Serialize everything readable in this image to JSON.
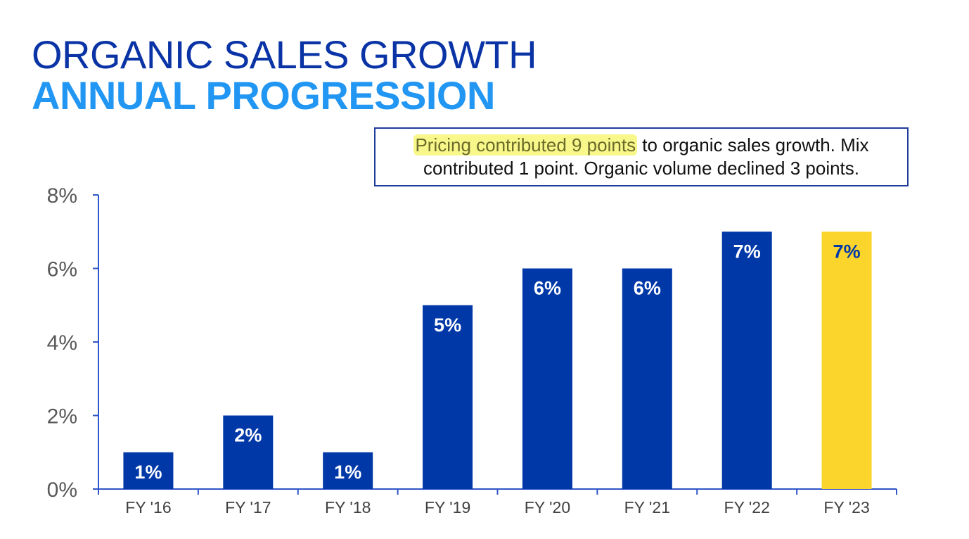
{
  "title": "ORGANIC SALES GROWTH",
  "subtitle": "ANNUAL PROGRESSION",
  "callout": {
    "highlight": "Pricing contributed 9 points",
    "rest_line1": "to organic sales growth. Mix",
    "line2": "contributed 1 point. Organic volume declined 3 points."
  },
  "colors": {
    "title": "#0a33a6",
    "subtitle": "#2196f3",
    "bar": "#0038a8",
    "bar_highlight": "#fcd52c",
    "axis": "#2f55c8",
    "label_on_dark": "#ffffff",
    "label_on_highlight": "#0038a8"
  },
  "chart_data": {
    "type": "bar",
    "categories": [
      "FY '16",
      "FY '17",
      "FY '18",
      "FY '19",
      "FY '20",
      "FY '21",
      "FY '22",
      "FY '23"
    ],
    "values": [
      1,
      2,
      1,
      5,
      6,
      6,
      7,
      7
    ],
    "data_labels": [
      "1%",
      "2%",
      "1%",
      "5%",
      "6%",
      "6%",
      "7%",
      "7%"
    ],
    "highlight_index": 7,
    "ylim": [
      0,
      8
    ],
    "yticks": [
      0,
      2,
      4,
      6,
      8
    ],
    "ytick_labels": [
      "0%",
      "2%",
      "4%",
      "6%",
      "8%"
    ],
    "grid": false,
    "legend": "none"
  }
}
